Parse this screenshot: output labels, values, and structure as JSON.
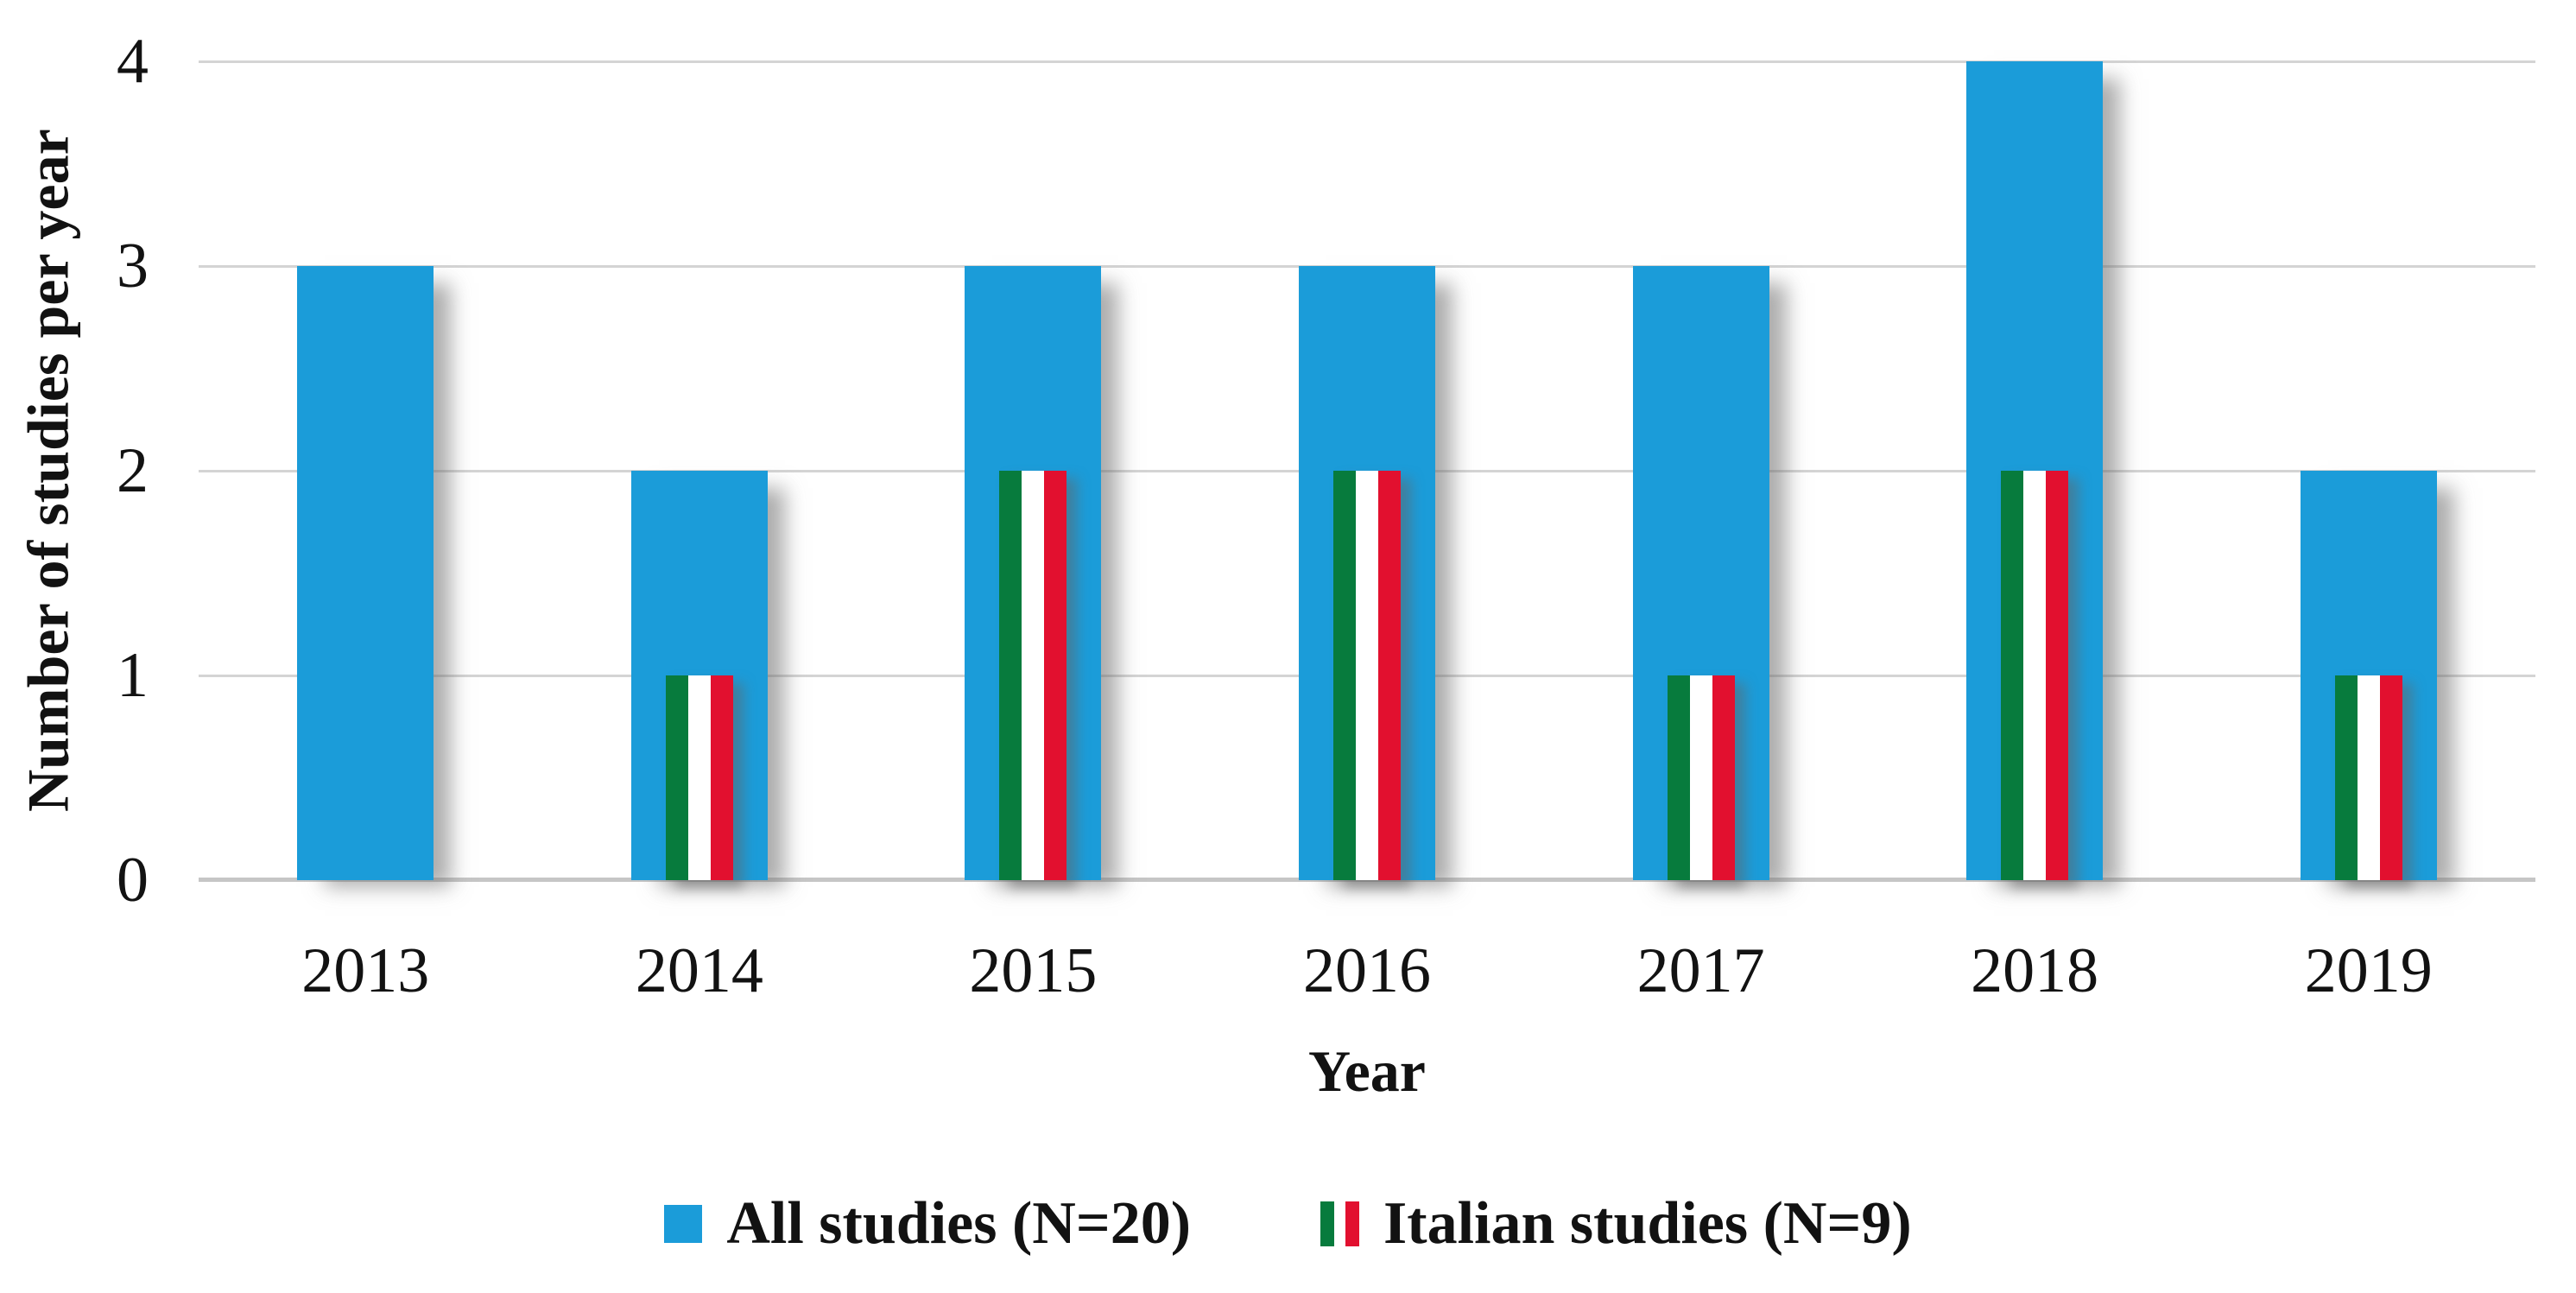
{
  "chart_data": {
    "type": "bar",
    "title": "",
    "categories": [
      "2013",
      "2014",
      "2015",
      "2016",
      "2017",
      "2018",
      "2019"
    ],
    "series": [
      {
        "name": "All studies (N=20)",
        "values": [
          3,
          2,
          3,
          3,
          3,
          4,
          2
        ],
        "color": "#1b9cd9",
        "marker": "square"
      },
      {
        "name": "Italian studies (N=9)",
        "values": [
          0,
          1,
          2,
          2,
          1,
          2,
          1
        ],
        "marker": "italian-flag",
        "stripe_colors": [
          "#077b3d",
          "#ffffff",
          "#e2102f"
        ]
      }
    ],
    "xlabel": "Year",
    "ylabel": "Number of studies per year",
    "ylim": [
      0,
      4
    ],
    "yticks": [
      0,
      1,
      2,
      3,
      4
    ],
    "grid": "horizontal",
    "gridline_color": "#d4d4d4",
    "axis_line_color": "#c6c6c6",
    "legend_position": "bottom",
    "background": "#ffffff"
  }
}
